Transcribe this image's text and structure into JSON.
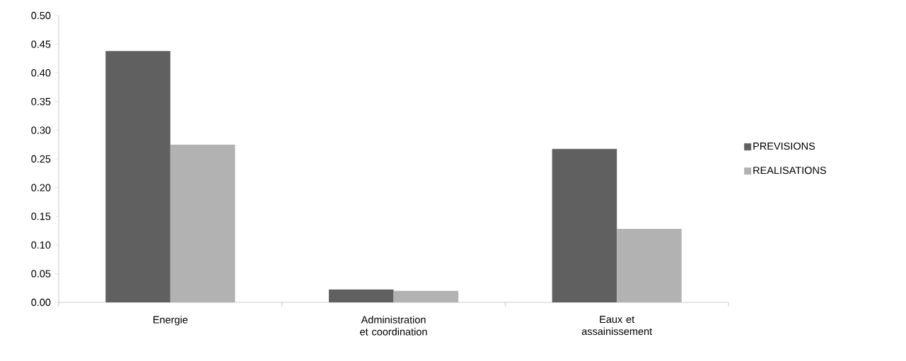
{
  "chart_data": {
    "type": "bar",
    "categories": [
      "Energie",
      "Administration et coordination",
      "Eaux et assainissement"
    ],
    "series": [
      {
        "name": "PREVISIONS",
        "color": "#606060",
        "values": [
          0.438,
          0.0225,
          0.2675
        ]
      },
      {
        "name": "REALISATIONS",
        "color": "#b2b2b2",
        "values": [
          0.275,
          0.02,
          0.128
        ]
      }
    ],
    "ylim": [
      0,
      0.5
    ],
    "yticks": [
      {
        "value": 0,
        "label": "0.00"
      },
      {
        "value": 0.05,
        "label": "0.05"
      },
      {
        "value": 0.1,
        "label": "0.10"
      },
      {
        "value": 0.15,
        "label": "0.15"
      },
      {
        "value": 0.2,
        "label": "0.20"
      },
      {
        "value": 0.25,
        "label": "0.25"
      },
      {
        "value": 0.3,
        "label": "0.30"
      },
      {
        "value": 0.35,
        "label": "0.35"
      },
      {
        "value": 0.4,
        "label": "0.40"
      },
      {
        "value": 0.45,
        "label": "0.45"
      },
      {
        "value": 0.5,
        "label": "0.50"
      }
    ],
    "legend": "right",
    "grid": false
  }
}
